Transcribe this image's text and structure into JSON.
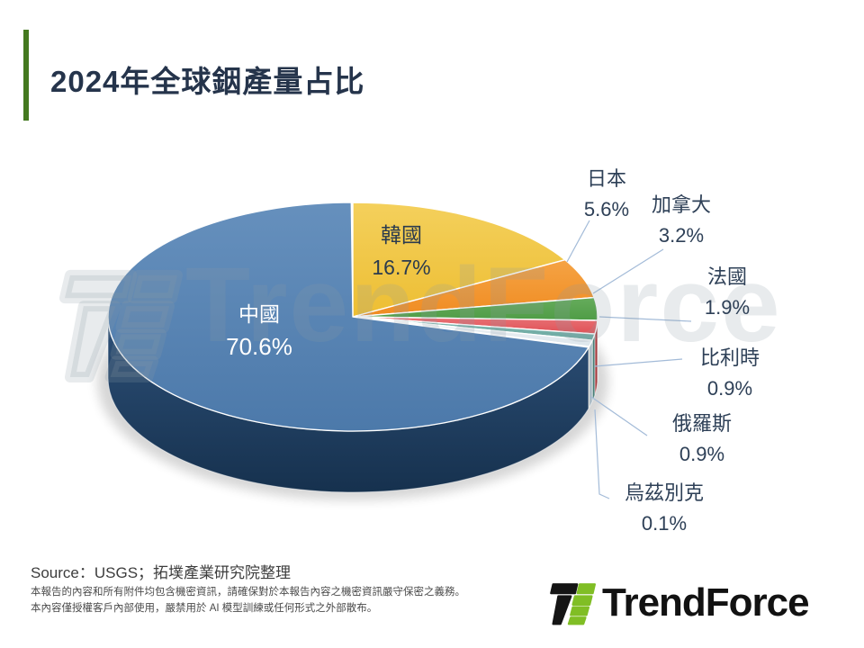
{
  "title": {
    "text": "2024年全球銦產量占比"
  },
  "chart_data": {
    "type": "pie",
    "title": "2024年全球銦產量占比",
    "unit": "%",
    "style": "3d",
    "start_angle_deg": 90,
    "direction": "clockwise",
    "legend": "none (direct labels, outside labels use leader lines)",
    "slices": [
      {
        "id": "korea",
        "label": "韓國",
        "value": 16.7,
        "pct_text": "16.7%",
        "color": "#EDBE33",
        "color_light": "#F4D05C",
        "color_dark": "#B08A1E"
      },
      {
        "id": "japan",
        "label": "日本",
        "value": 5.6,
        "pct_text": "5.6%",
        "color": "#F08C22",
        "color_light": "#F5A344",
        "color_dark": "#B5651A"
      },
      {
        "id": "canada",
        "label": "加拿大",
        "value": 3.2,
        "pct_text": "3.2%",
        "color": "#4F9C46",
        "color_light": "#66AC5C",
        "color_dark": "#2F6E2C"
      },
      {
        "id": "france",
        "label": "法國",
        "value": 1.9,
        "pct_text": "1.9%",
        "color": "#E05156",
        "color_light": "#E87276",
        "color_dark": "#A63A3E"
      },
      {
        "id": "belgium",
        "label": "比利時",
        "value": 0.9,
        "pct_text": "0.9%",
        "color": "#6BA8A0",
        "color_light": "#85BAB3",
        "color_dark": "#4A7E77"
      },
      {
        "id": "russia",
        "label": "俄羅斯",
        "value": 0.9,
        "pct_text": "0.9%",
        "color": "#DDE6EC",
        "color_light": "#F0F4F7",
        "color_dark": "#A9B9C3"
      },
      {
        "id": "uzbekistan",
        "label": "烏茲別克",
        "value": 0.1,
        "pct_text": "0.1%",
        "color": "#D6CA9E",
        "color_light": "#E5DCBA",
        "color_dark": "#A79B6F"
      },
      {
        "id": "china",
        "label": "中國",
        "value": 70.6,
        "pct_text": "70.6%",
        "color": "#4C79AA",
        "color_light": "#6690BD",
        "color_dark": "#1E3E62"
      }
    ],
    "accent_colors": {
      "title_bar_green": "#44791F",
      "title_text": "#25344B",
      "leader_line": "#A3BBD8"
    }
  },
  "source": {
    "text": "Source：USGS；拓墣產業研究院整理"
  },
  "disclaimer": {
    "line1": "本報告的內容和所有附件均包含機密資訊，請確保對於本報告內容之機密資訊嚴守保密之義務。",
    "line2": "本內容僅授權客戶內部使用，嚴禁用於 AI 模型訓練或任何形式之外部散布。"
  },
  "logo": {
    "text": "TrendForce"
  },
  "watermark": {
    "text": "TrendForce"
  }
}
